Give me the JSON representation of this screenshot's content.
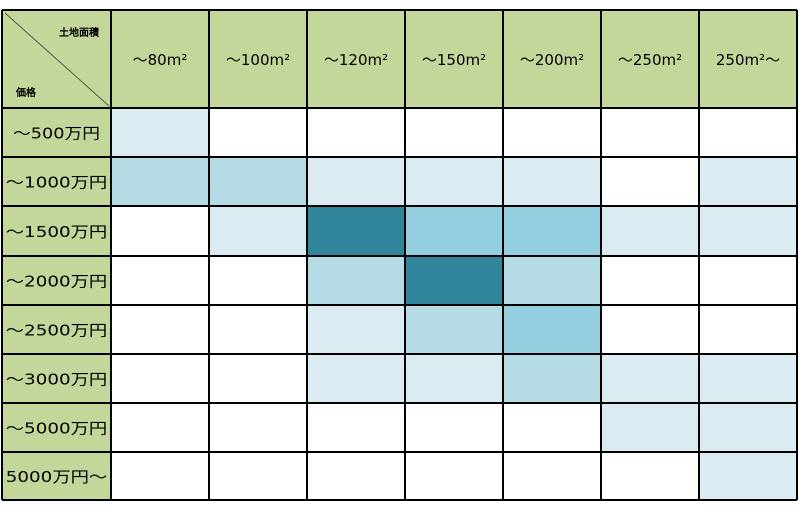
{
  "chart_data": {
    "type": "heatmap",
    "corner": {
      "column_axis_label": "土地面積",
      "row_axis_label": "価格"
    },
    "columns": [
      "～80m²",
      "～100m²",
      "～120m²",
      "～150m²",
      "～200m²",
      "～250m²",
      "250m²～"
    ],
    "rows": [
      "～500万円",
      "～1000万円",
      "～1500万円",
      "～2000万円",
      "～2500万円",
      "～3000万円",
      "～5000万円",
      "5000万円～"
    ],
    "values": [
      [
        1,
        0,
        0,
        0,
        0,
        0,
        0
      ],
      [
        2,
        2,
        1,
        1,
        1,
        0,
        1
      ],
      [
        0,
        1,
        5,
        3,
        3,
        1,
        1
      ],
      [
        0,
        0,
        2,
        5,
        2,
        0,
        0
      ],
      [
        0,
        0,
        1,
        2,
        3,
        0,
        0
      ],
      [
        0,
        0,
        1,
        1,
        2,
        1,
        1
      ],
      [
        0,
        0,
        0,
        0,
        0,
        1,
        1
      ],
      [
        0,
        0,
        0,
        0,
        0,
        0,
        1
      ]
    ],
    "scale_colors": [
      "#ffffff",
      "#daebf2",
      "#b5dbe5",
      "#93cfdf",
      "#6fb8c8",
      "#31869b"
    ],
    "header_color": "#c4d79b",
    "grid_color": "#000000"
  }
}
